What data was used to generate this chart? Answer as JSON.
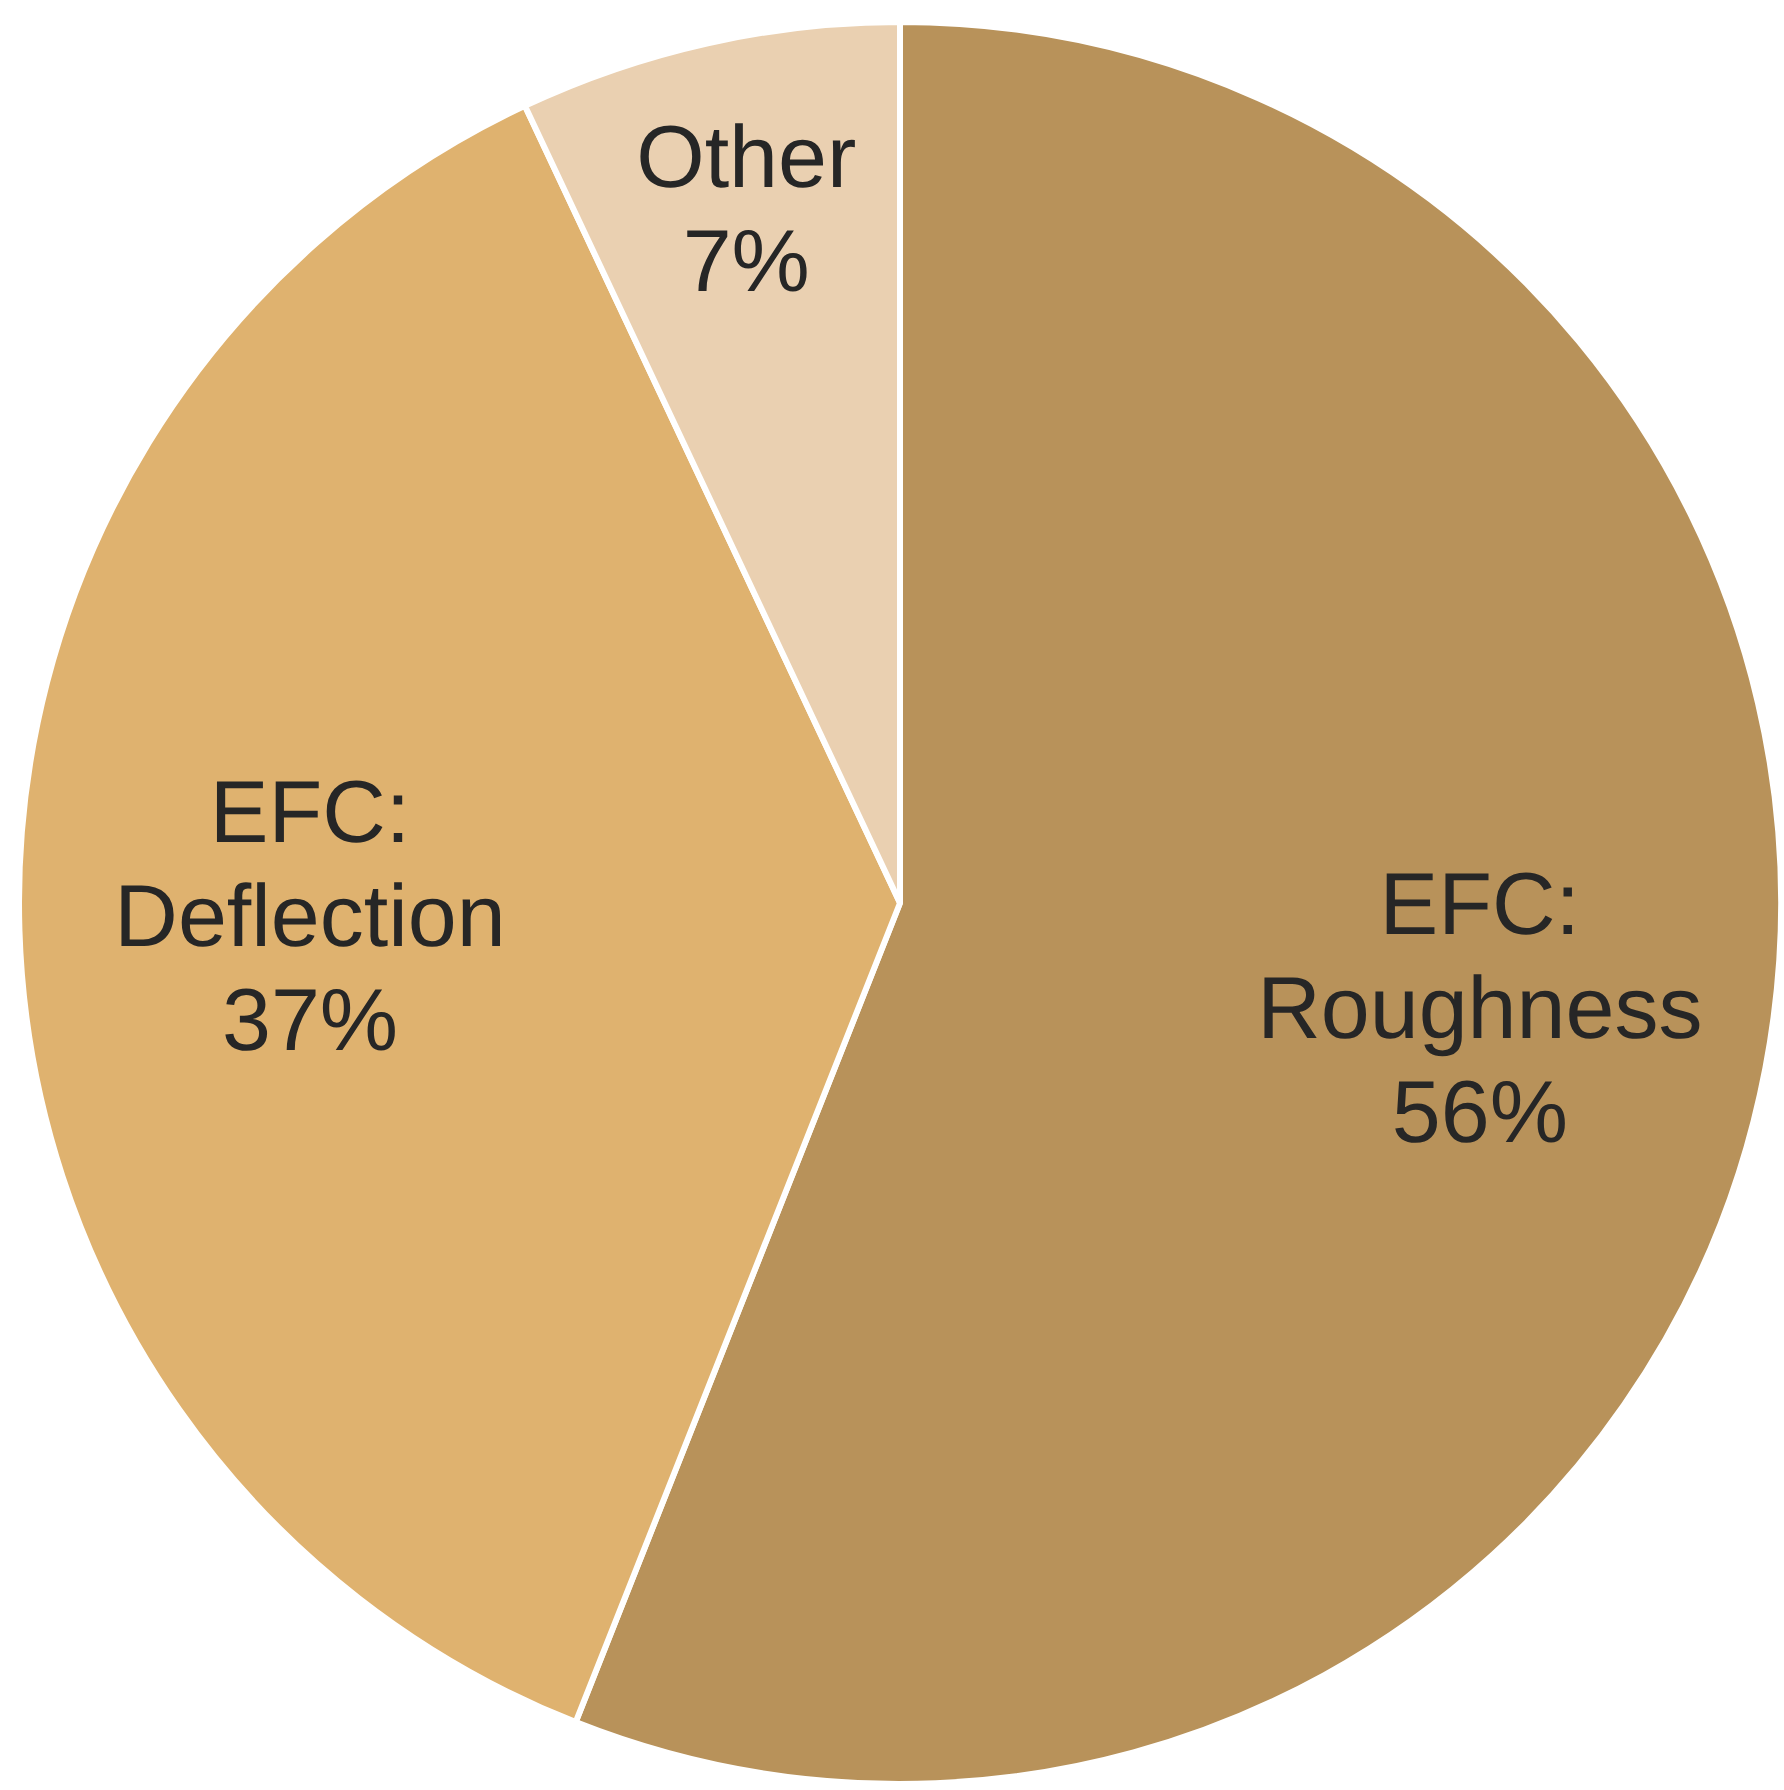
{
  "chart_data": {
    "type": "pie",
    "categories": [
      "EFC: Roughness",
      "EFC: Deflection",
      "Other"
    ],
    "values": [
      56,
      37,
      7
    ],
    "colors": [
      "#b8925a",
      "#dfb26f",
      "#ead0b1"
    ],
    "value_labels": [
      "56%",
      "37%",
      "7%"
    ]
  }
}
